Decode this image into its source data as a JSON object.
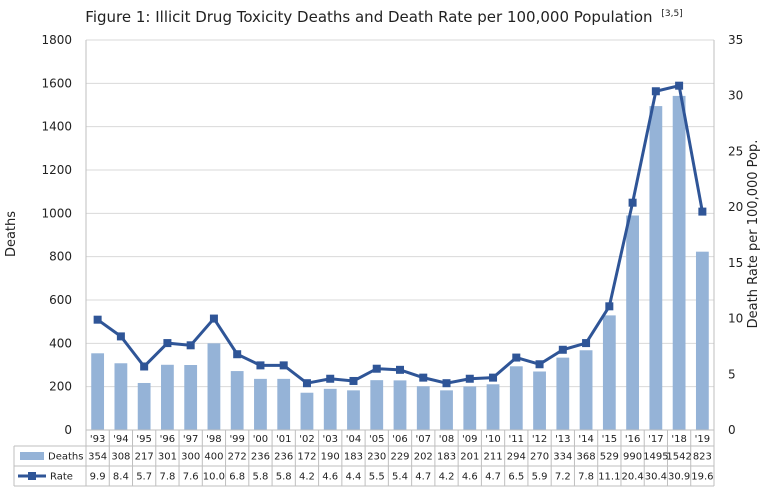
{
  "chart_data": {
    "type": "bar+line",
    "title": "Figure 1: Illicit Drug Toxicity Deaths and Death Rate per 100,000 Population",
    "title_superscript": "[3,5]",
    "ylabel_left": "Deaths",
    "ylabel_right": "Death Rate per 100,000 Pop.",
    "ylim_left": [
      0,
      1800
    ],
    "ylim_right": [
      0,
      35
    ],
    "yticks_left": [
      "0",
      "200",
      "400",
      "600",
      "800",
      "1000",
      "1200",
      "1400",
      "1600",
      "1800"
    ],
    "yticks_right": [
      "0",
      "5",
      "10",
      "15",
      "20",
      "25",
      "30",
      "35"
    ],
    "categories": [
      "'93",
      "'94",
      "'95",
      "'96",
      "'97",
      "'98",
      "'99",
      "'00",
      "'01",
      "'02",
      "'03",
      "'04",
      "'05",
      "'06",
      "'07",
      "'08",
      "'09",
      "'10",
      "'11",
      "'12",
      "'13",
      "'14",
      "'15",
      "'16",
      "'17",
      "'18",
      "'19"
    ],
    "series": [
      {
        "name": "Deaths",
        "kind": "bar",
        "axis": "left",
        "color": "#95b3d7",
        "values": [
          354,
          308,
          217,
          301,
          300,
          400,
          272,
          236,
          236,
          172,
          190,
          183,
          230,
          229,
          202,
          183,
          201,
          211,
          294,
          270,
          334,
          368,
          529,
          990,
          1495,
          1542,
          823
        ]
      },
      {
        "name": "Rate",
        "kind": "line",
        "axis": "right",
        "color": "#2f5597",
        "values": [
          9.9,
          8.4,
          5.7,
          7.8,
          7.6,
          10.0,
          6.8,
          5.8,
          5.8,
          4.2,
          4.6,
          4.4,
          5.5,
          5.4,
          4.7,
          4.2,
          4.6,
          4.7,
          6.5,
          5.9,
          7.2,
          7.8,
          11.1,
          20.4,
          30.4,
          30.9,
          19.6
        ]
      }
    ],
    "grid": true,
    "data_table": true
  }
}
